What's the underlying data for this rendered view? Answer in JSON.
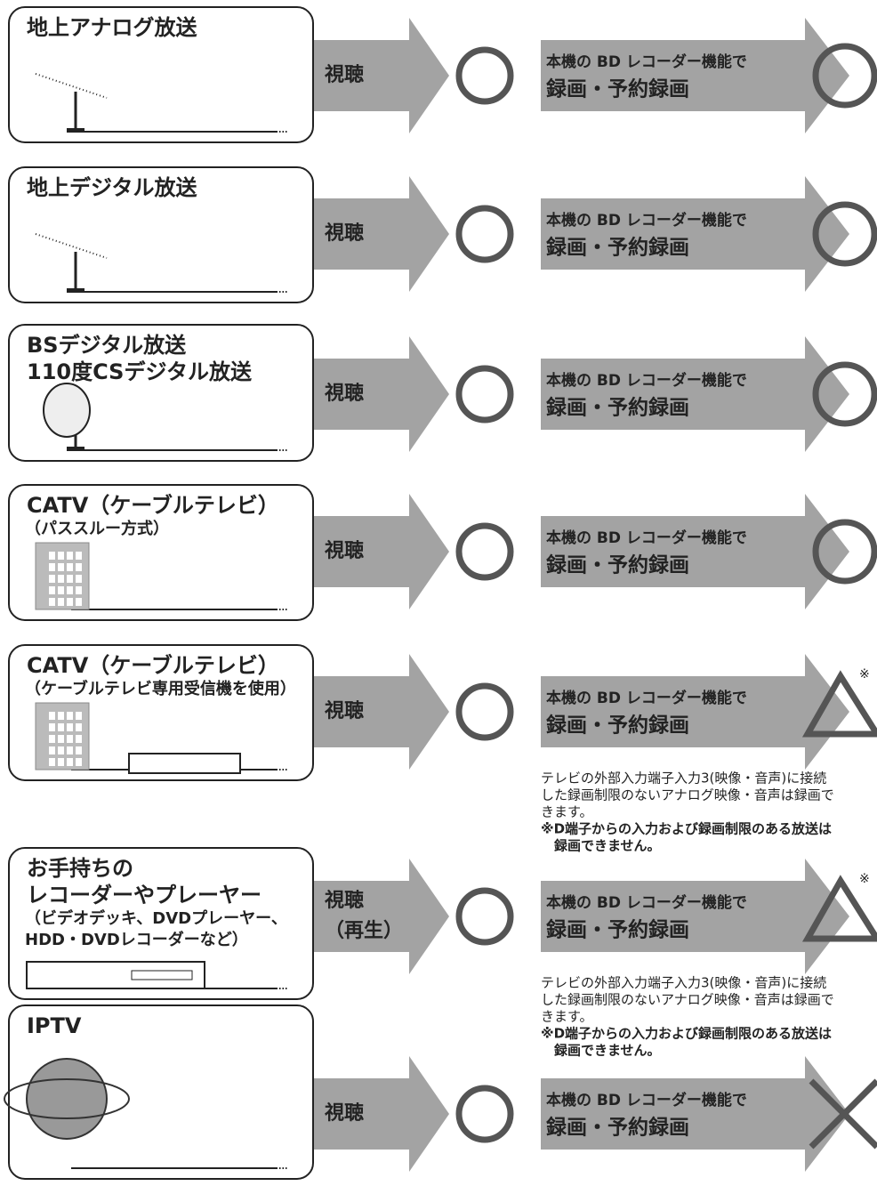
{
  "rows": [
    {
      "title": [
        "地上アナログ放送"
      ],
      "action": [
        "視聴"
      ],
      "record": [
        "本機の BD レコーダー機能で",
        "録画・予約録画"
      ]
    },
    {
      "title": [
        "地上デジタル放送"
      ],
      "action": [
        "視聴"
      ],
      "record": [
        "本機の BD レコーダー機能で",
        "録画・予約録画"
      ]
    },
    {
      "title": [
        "BSデジタル放送",
        "110度CSデジタル放送"
      ],
      "action": [
        "視聴"
      ],
      "record": [
        "本機の BD レコーダー機能で",
        "録画・予約録画"
      ]
    },
    {
      "title": [
        "CATV（ケーブルテレビ）"
      ],
      "subtitle": [
        "（パススルー方式）"
      ],
      "action": [
        "視聴"
      ],
      "record": [
        "本機の BD レコーダー機能で",
        "録画・予約録画"
      ]
    },
    {
      "title": [
        "CATV（ケーブルテレビ）"
      ],
      "subtitle": [
        "（ケーブルテレビ専用受信機を使用）"
      ],
      "action": [
        "視聴"
      ],
      "record": [
        "本機の BD レコーダー機能で",
        "録画・予約録画"
      ],
      "mark": "※",
      "note": [
        "テレビの外部入力端子入力3(映像・音声)に接続",
        "した録画制限のないアナログ映像・音声は録画で",
        "きます。",
        "※D端子からの入力および録画制限のある放送は",
        "　録画できません。"
      ]
    },
    {
      "title": [
        "お手持ちの",
        "レコーダーやプレーヤー"
      ],
      "subtitle": [
        "（ビデオデッキ、DVDプレーヤー、",
        "HDD・DVDレコーダーなど）"
      ],
      "action": [
        "視聴",
        "（再生）"
      ],
      "record": [
        "本機の BD レコーダー機能で",
        "録画・予約録画"
      ],
      "mark": "※",
      "note": [
        "テレビの外部入力端子入力3(映像・音声)に接続",
        "した録画制限のないアナログ映像・音声は録画で",
        "きます。",
        "※D端子からの入力および録画制限のある放送は",
        "　録画できません。"
      ]
    },
    {
      "title": [
        "IPTV"
      ],
      "action": [
        "視聴"
      ],
      "record": [
        "本機の BD レコーダー機能で",
        "録画・予約録画"
      ]
    }
  ]
}
